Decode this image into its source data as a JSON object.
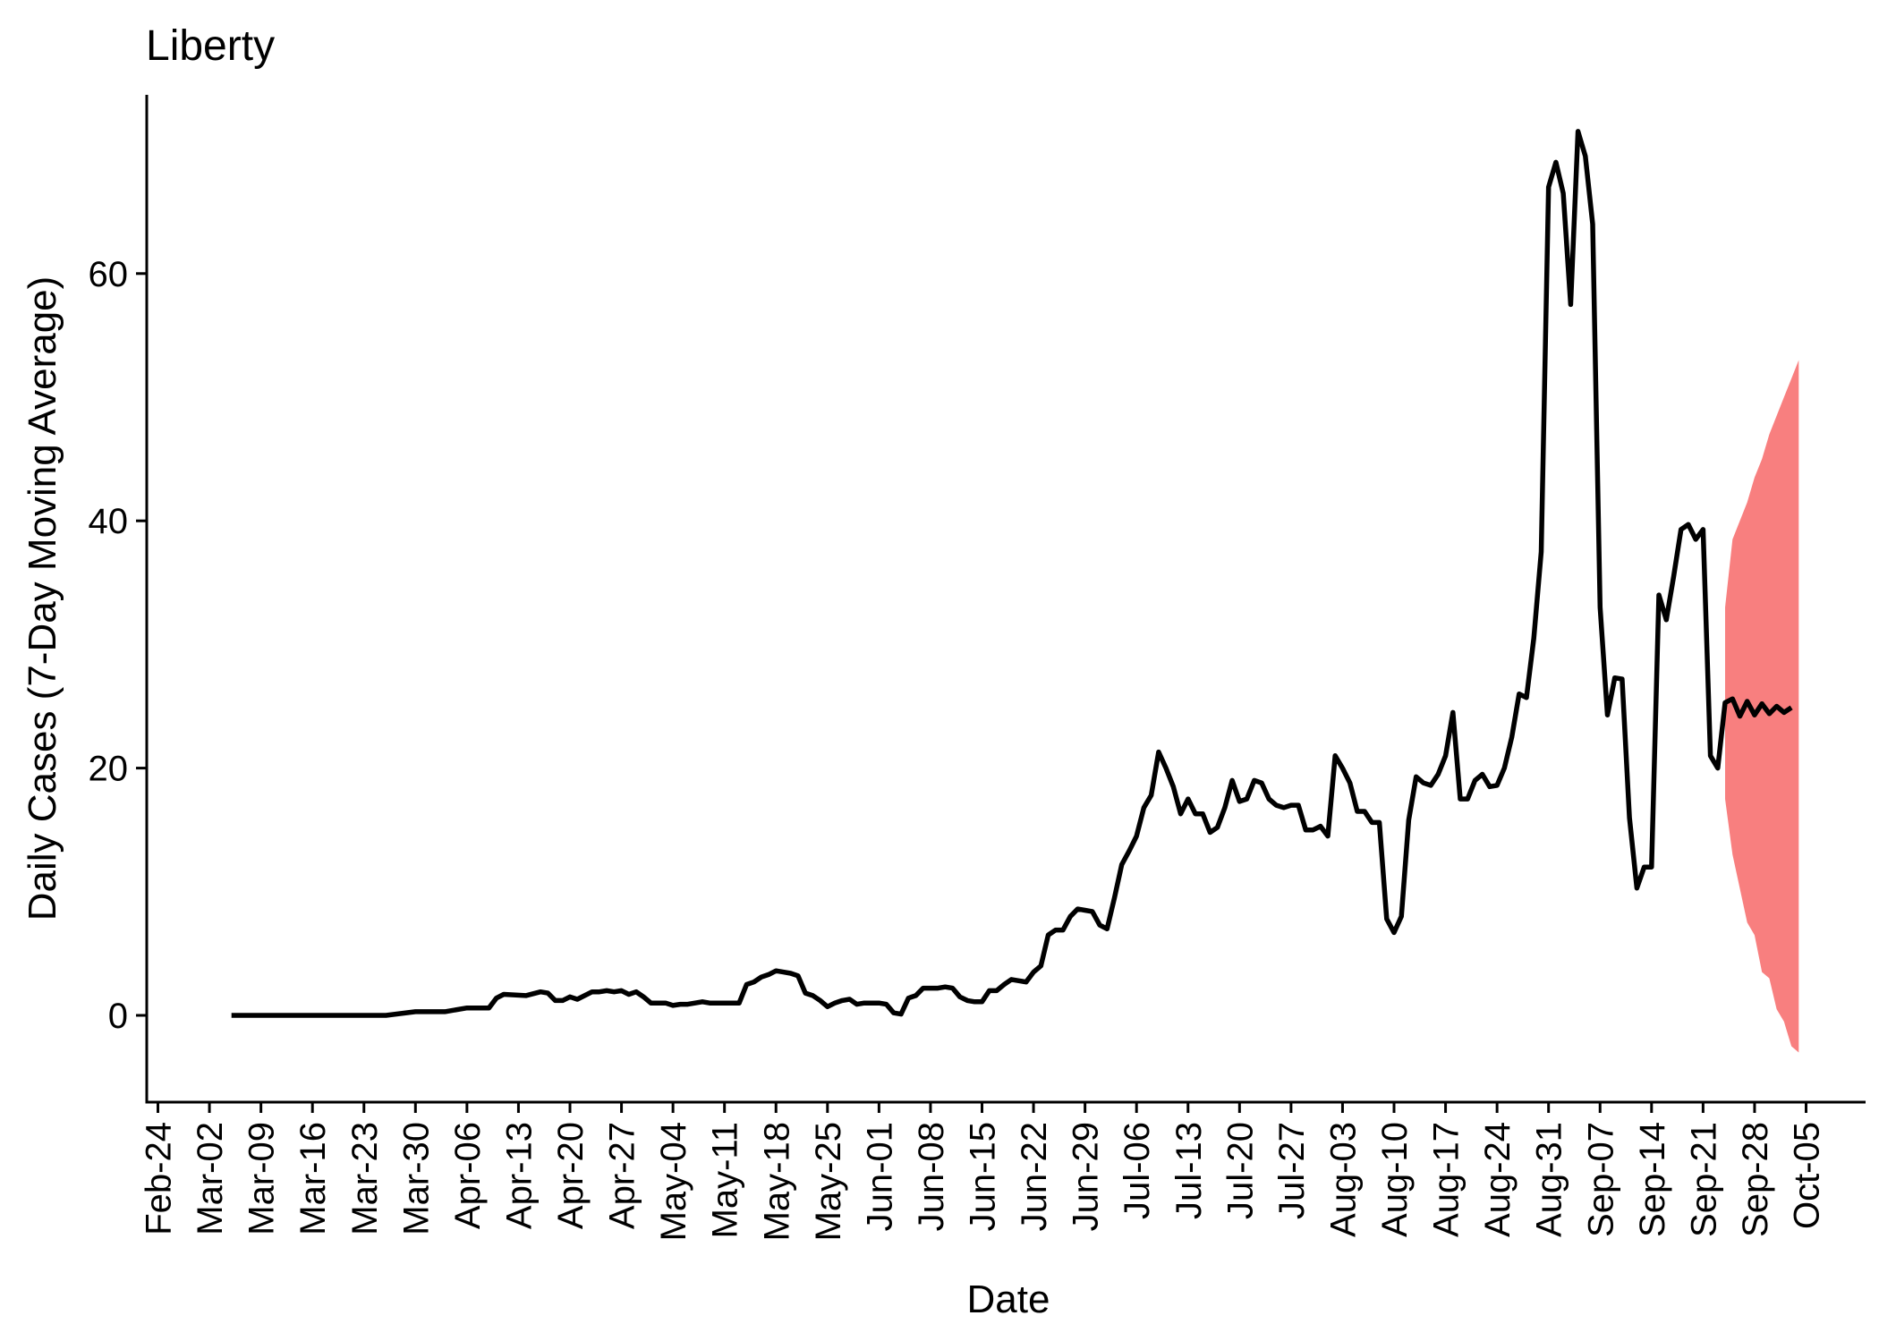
{
  "chart_data": {
    "type": "line",
    "title": "Liberty",
    "xlabel": "Date",
    "ylabel": "Daily Cases (7-Day Moving Average)",
    "x_tick_labels": [
      "Feb-24",
      "Mar-02",
      "Mar-09",
      "Mar-16",
      "Mar-23",
      "Mar-30",
      "Apr-06",
      "Apr-13",
      "Apr-20",
      "Apr-27",
      "May-04",
      "May-11",
      "May-18",
      "May-25",
      "Jun-01",
      "Jun-08",
      "Jun-15",
      "Jun-22",
      "Jun-29",
      "Jul-06",
      "Jul-13",
      "Jul-20",
      "Jul-27",
      "Aug-03",
      "Aug-10",
      "Aug-17",
      "Aug-24",
      "Aug-31",
      "Sep-07",
      "Sep-14",
      "Sep-21",
      "Sep-28",
      "Oct-05"
    ],
    "y_ticks": [
      0,
      20,
      40,
      60
    ],
    "ylim": [
      -6.5,
      74
    ],
    "grid": false,
    "legend": "none",
    "colors": {
      "line": "#000000",
      "band": "#f87f7f"
    },
    "series": [
      {
        "values": [
          {
            "x": "Mar-05",
            "y": 0
          },
          {
            "x": "Mar-26",
            "y": 0
          },
          {
            "x": "Mar-30",
            "y": 0.3
          },
          {
            "x": "Apr-03",
            "y": 0.3
          },
          {
            "x": "Apr-06",
            "y": 0.6
          },
          {
            "x": "Apr-09",
            "y": 0.6
          },
          {
            "x": "Apr-10",
            "y": 1.4
          },
          {
            "x": "Apr-11",
            "y": 1.7
          },
          {
            "x": "Apr-14",
            "y": 1.6
          },
          {
            "x": "Apr-16",
            "y": 1.9
          },
          {
            "x": "Apr-17",
            "y": 1.8
          },
          {
            "x": "Apr-18",
            "y": 1.2
          },
          {
            "x": "Apr-19",
            "y": 1.2
          },
          {
            "x": "Apr-20",
            "y": 1.5
          },
          {
            "x": "Apr-21",
            "y": 1.3
          },
          {
            "x": "Apr-23",
            "y": 1.9
          },
          {
            "x": "Apr-24",
            "y": 1.9
          },
          {
            "x": "Apr-25",
            "y": 2.0
          },
          {
            "x": "Apr-26",
            "y": 1.9
          },
          {
            "x": "Apr-27",
            "y": 2.0
          },
          {
            "x": "Apr-28",
            "y": 1.7
          },
          {
            "x": "Apr-29",
            "y": 1.9
          },
          {
            "x": "Apr-30",
            "y": 1.5
          },
          {
            "x": "May-01",
            "y": 1.0
          },
          {
            "x": "May-02",
            "y": 1.0
          },
          {
            "x": "May-03",
            "y": 1.0
          },
          {
            "x": "May-04",
            "y": 0.8
          },
          {
            "x": "May-05",
            "y": 0.9
          },
          {
            "x": "May-06",
            "y": 0.9
          },
          {
            "x": "May-07",
            "y": 1.0
          },
          {
            "x": "May-08",
            "y": 1.1
          },
          {
            "x": "May-09",
            "y": 1.0
          },
          {
            "x": "May-10",
            "y": 1.0
          },
          {
            "x": "May-13",
            "y": 1.0
          },
          {
            "x": "May-14",
            "y": 2.5
          },
          {
            "x": "May-15",
            "y": 2.7
          },
          {
            "x": "May-16",
            "y": 3.1
          },
          {
            "x": "May-17",
            "y": 3.3
          },
          {
            "x": "May-18",
            "y": 3.6
          },
          {
            "x": "May-19",
            "y": 3.5
          },
          {
            "x": "May-20",
            "y": 3.4
          },
          {
            "x": "May-21",
            "y": 3.2
          },
          {
            "x": "May-22",
            "y": 1.8
          },
          {
            "x": "May-23",
            "y": 1.6
          },
          {
            "x": "May-24",
            "y": 1.2
          },
          {
            "x": "May-25",
            "y": 0.7
          },
          {
            "x": "May-26",
            "y": 1.0
          },
          {
            "x": "May-27",
            "y": 1.2
          },
          {
            "x": "May-28",
            "y": 1.3
          },
          {
            "x": "May-29",
            "y": 0.9
          },
          {
            "x": "May-30",
            "y": 1.0
          },
          {
            "x": "May-31",
            "y": 1.0
          },
          {
            "x": "Jun-01",
            "y": 1.0
          },
          {
            "x": "Jun-02",
            "y": 0.9
          },
          {
            "x": "Jun-03",
            "y": 0.2
          },
          {
            "x": "Jun-04",
            "y": 0.1
          },
          {
            "x": "Jun-05",
            "y": 1.4
          },
          {
            "x": "Jun-06",
            "y": 1.6
          },
          {
            "x": "Jun-07",
            "y": 2.2
          },
          {
            "x": "Jun-08",
            "y": 2.2
          },
          {
            "x": "Jun-09",
            "y": 2.2
          },
          {
            "x": "Jun-10",
            "y": 2.3
          },
          {
            "x": "Jun-11",
            "y": 2.2
          },
          {
            "x": "Jun-12",
            "y": 1.5
          },
          {
            "x": "Jun-13",
            "y": 1.2
          },
          {
            "x": "Jun-14",
            "y": 1.1
          },
          {
            "x": "Jun-15",
            "y": 1.1
          },
          {
            "x": "Jun-16",
            "y": 2.0
          },
          {
            "x": "Jun-17",
            "y": 2.0
          },
          {
            "x": "Jun-18",
            "y": 2.5
          },
          {
            "x": "Jun-19",
            "y": 2.9
          },
          {
            "x": "Jun-20",
            "y": 2.8
          },
          {
            "x": "Jun-21",
            "y": 2.7
          },
          {
            "x": "Jun-22",
            "y": 3.5
          },
          {
            "x": "Jun-23",
            "y": 4.0
          },
          {
            "x": "Jun-24",
            "y": 6.5
          },
          {
            "x": "Jun-25",
            "y": 6.9
          },
          {
            "x": "Jun-26",
            "y": 6.9
          },
          {
            "x": "Jun-27",
            "y": 8.0
          },
          {
            "x": "Jun-28",
            "y": 8.6
          },
          {
            "x": "Jun-29",
            "y": 8.5
          },
          {
            "x": "Jun-30",
            "y": 8.4
          },
          {
            "x": "Jul-01",
            "y": 7.3
          },
          {
            "x": "Jul-02",
            "y": 7.0
          },
          {
            "x": "Jul-03",
            "y": 9.5
          },
          {
            "x": "Jul-04",
            "y": 12.2
          },
          {
            "x": "Jul-05",
            "y": 13.3
          },
          {
            "x": "Jul-06",
            "y": 14.5
          },
          {
            "x": "Jul-07",
            "y": 16.8
          },
          {
            "x": "Jul-08",
            "y": 17.8
          },
          {
            "x": "Jul-09",
            "y": 21.3
          },
          {
            "x": "Jul-10",
            "y": 20.0
          },
          {
            "x": "Jul-11",
            "y": 18.5
          },
          {
            "x": "Jul-12",
            "y": 16.3
          },
          {
            "x": "Jul-13",
            "y": 17.5
          },
          {
            "x": "Jul-14",
            "y": 16.3
          },
          {
            "x": "Jul-15",
            "y": 16.3
          },
          {
            "x": "Jul-16",
            "y": 14.8
          },
          {
            "x": "Jul-17",
            "y": 15.2
          },
          {
            "x": "Jul-18",
            "y": 16.8
          },
          {
            "x": "Jul-19",
            "y": 19.0
          },
          {
            "x": "Jul-20",
            "y": 17.3
          },
          {
            "x": "Jul-21",
            "y": 17.5
          },
          {
            "x": "Jul-22",
            "y": 19.0
          },
          {
            "x": "Jul-23",
            "y": 18.8
          },
          {
            "x": "Jul-24",
            "y": 17.5
          },
          {
            "x": "Jul-25",
            "y": 17.0
          },
          {
            "x": "Jul-26",
            "y": 16.8
          },
          {
            "x": "Jul-27",
            "y": 17.0
          },
          {
            "x": "Jul-28",
            "y": 17.0
          },
          {
            "x": "Jul-29",
            "y": 15.0
          },
          {
            "x": "Jul-30",
            "y": 15.0
          },
          {
            "x": "Jul-31",
            "y": 15.3
          },
          {
            "x": "Aug-01",
            "y": 14.5
          },
          {
            "x": "Aug-02",
            "y": 21.0
          },
          {
            "x": "Aug-03",
            "y": 20.0
          },
          {
            "x": "Aug-04",
            "y": 18.8
          },
          {
            "x": "Aug-05",
            "y": 16.5
          },
          {
            "x": "Aug-06",
            "y": 16.5
          },
          {
            "x": "Aug-07",
            "y": 15.6
          },
          {
            "x": "Aug-08",
            "y": 15.6
          },
          {
            "x": "Aug-09",
            "y": 7.8
          },
          {
            "x": "Aug-10",
            "y": 6.7
          },
          {
            "x": "Aug-11",
            "y": 8.0
          },
          {
            "x": "Aug-12",
            "y": 15.8
          },
          {
            "x": "Aug-13",
            "y": 19.3
          },
          {
            "x": "Aug-14",
            "y": 18.8
          },
          {
            "x": "Aug-15",
            "y": 18.6
          },
          {
            "x": "Aug-16",
            "y": 19.5
          },
          {
            "x": "Aug-17",
            "y": 21.0
          },
          {
            "x": "Aug-18",
            "y": 24.5
          },
          {
            "x": "Aug-19",
            "y": 17.5
          },
          {
            "x": "Aug-20",
            "y": 17.5
          },
          {
            "x": "Aug-21",
            "y": 19.0
          },
          {
            "x": "Aug-22",
            "y": 19.5
          },
          {
            "x": "Aug-23",
            "y": 18.5
          },
          {
            "x": "Aug-24",
            "y": 18.6
          },
          {
            "x": "Aug-25",
            "y": 20.0
          },
          {
            "x": "Aug-26",
            "y": 22.5
          },
          {
            "x": "Aug-27",
            "y": 26.0
          },
          {
            "x": "Aug-28",
            "y": 25.7
          },
          {
            "x": "Aug-29",
            "y": 30.5
          },
          {
            "x": "Aug-30",
            "y": 37.5
          },
          {
            "x": "Aug-31",
            "y": 67.0
          },
          {
            "x": "Sep-01",
            "y": 69.0
          },
          {
            "x": "Sep-02",
            "y": 66.5
          },
          {
            "x": "Sep-03",
            "y": 57.5
          },
          {
            "x": "Sep-04",
            "y": 71.5
          },
          {
            "x": "Sep-05",
            "y": 69.5
          },
          {
            "x": "Sep-06",
            "y": 64.0
          },
          {
            "x": "Sep-07",
            "y": 33.0
          },
          {
            "x": "Sep-08",
            "y": 24.3
          },
          {
            "x": "Sep-09",
            "y": 27.3
          },
          {
            "x": "Sep-10",
            "y": 27.2
          },
          {
            "x": "Sep-11",
            "y": 16.0
          },
          {
            "x": "Sep-12",
            "y": 10.3
          },
          {
            "x": "Sep-13",
            "y": 12.0
          },
          {
            "x": "Sep-14",
            "y": 12.0
          },
          {
            "x": "Sep-15",
            "y": 34.0
          },
          {
            "x": "Sep-16",
            "y": 32.0
          },
          {
            "x": "Sep-17",
            "y": 35.5
          },
          {
            "x": "Sep-18",
            "y": 39.3
          },
          {
            "x": "Sep-19",
            "y": 39.7
          },
          {
            "x": "Sep-20",
            "y": 38.5
          },
          {
            "x": "Sep-21",
            "y": 39.3
          },
          {
            "x": "Sep-22",
            "y": 21.0
          },
          {
            "x": "Sep-23",
            "y": 20.0
          },
          {
            "x": "Sep-24",
            "y": 25.3
          },
          {
            "x": "Sep-25",
            "y": 25.6
          },
          {
            "x": "Sep-26",
            "y": 24.2
          },
          {
            "x": "Sep-27",
            "y": 25.4
          },
          {
            "x": "Sep-28",
            "y": 24.3
          },
          {
            "x": "Sep-29",
            "y": 25.2
          },
          {
            "x": "Sep-30",
            "y": 24.4
          },
          {
            "x": "Oct-01",
            "y": 25.0
          },
          {
            "x": "Oct-02",
            "y": 24.5
          },
          {
            "x": "Oct-03",
            "y": 24.9
          }
        ]
      }
    ],
    "forecast_band": {
      "upper": [
        {
          "x": "Sep-24",
          "y": 33.0
        },
        {
          "x": "Sep-25",
          "y": 38.5
        },
        {
          "x": "Sep-27",
          "y": 41.5
        },
        {
          "x": "Sep-28",
          "y": 43.5
        },
        {
          "x": "Sep-29",
          "y": 45.0
        },
        {
          "x": "Sep-30",
          "y": 47.0
        },
        {
          "x": "Oct-01",
          "y": 48.5
        },
        {
          "x": "Oct-02",
          "y": 50.0
        },
        {
          "x": "Oct-03",
          "y": 51.5
        },
        {
          "x": "Oct-04",
          "y": 53.0
        }
      ],
      "lower": [
        {
          "x": "Sep-24",
          "y": 17.5
        },
        {
          "x": "Sep-25",
          "y": 13.0
        },
        {
          "x": "Sep-27",
          "y": 7.5
        },
        {
          "x": "Sep-28",
          "y": 6.5
        },
        {
          "x": "Sep-29",
          "y": 3.5
        },
        {
          "x": "Sep-30",
          "y": 3.0
        },
        {
          "x": "Oct-01",
          "y": 0.5
        },
        {
          "x": "Oct-02",
          "y": -0.5
        },
        {
          "x": "Oct-03",
          "y": -2.5
        },
        {
          "x": "Oct-04",
          "y": -3.0
        }
      ]
    }
  }
}
